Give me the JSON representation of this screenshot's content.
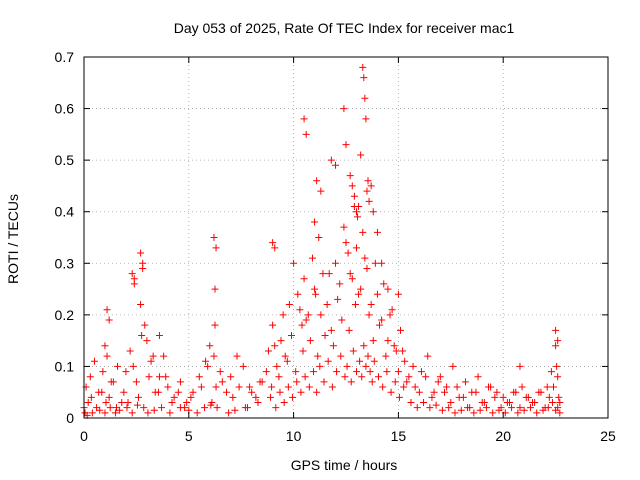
{
  "chart_data": {
    "type": "scatter",
    "title": "Day 053 of 2025, Rate Of TEC Index for receiver mac1",
    "xlabel": "GPS time / hours",
    "ylabel": "ROTI / TECUs",
    "xlim": [
      0,
      25
    ],
    "ylim": [
      0,
      0.7
    ],
    "xticks": [
      0,
      5,
      10,
      15,
      20,
      25
    ],
    "yticks": [
      0,
      0.1,
      0.2,
      0.3,
      0.4,
      0.5,
      0.6,
      0.7
    ],
    "grid": true,
    "marker": "+",
    "color": "#ff0000",
    "x": [
      0.0,
      0.1,
      0.2,
      0.3,
      0.5,
      0.7,
      0.9,
      1.0,
      1.1,
      1.2,
      1.4,
      1.6,
      1.8,
      2.0,
      2.2,
      2.4,
      2.5,
      2.7,
      2.8,
      2.9,
      3.0,
      3.2,
      3.4,
      3.6,
      3.8,
      4.0,
      4.3,
      4.6,
      4.9,
      5.2,
      5.5,
      5.8,
      6.0,
      6.2,
      6.3,
      6.5,
      6.8,
      7.0,
      7.3,
      7.6,
      7.9,
      8.2,
      8.5,
      8.8,
      9.0,
      9.2,
      9.4,
      9.6,
      9.8,
      10.0,
      10.2,
      10.4,
      10.5,
      10.7,
      10.9,
      11.0,
      11.2,
      11.4,
      11.6,
      11.8,
      12.0,
      12.2,
      12.4,
      12.6,
      12.7,
      12.9,
      13.0,
      13.1,
      13.3,
      13.5,
      13.7,
      13.9,
      14.1,
      14.3,
      14.5,
      14.7,
      14.9,
      15.1,
      15.3,
      15.5,
      15.8,
      16.1,
      16.4,
      16.7,
      17.0,
      17.3,
      17.6,
      17.9,
      18.2,
      18.5,
      18.8,
      19.1,
      19.4,
      19.7,
      20.0,
      20.3,
      20.6,
      20.9,
      21.2,
      21.5,
      21.8,
      22.1,
      22.3,
      22.5,
      22.6,
      22.7,
      0.05,
      0.35,
      0.6,
      0.85,
      1.05,
      1.3,
      1.55,
      1.9,
      2.1,
      2.35,
      2.6,
      2.75,
      3.1,
      3.3,
      3.55,
      3.9,
      4.2,
      4.5,
      4.8,
      5.1,
      5.6,
      5.9,
      6.1,
      6.25,
      6.6,
      7.1,
      7.4,
      7.7,
      8.0,
      8.4,
      8.7,
      8.95,
      9.1,
      9.3,
      9.5,
      9.7,
      9.9,
      10.1,
      10.3,
      10.45,
      10.6,
      10.8,
      11.05,
      11.15,
      11.3,
      11.5,
      11.7,
      11.9,
      12.1,
      12.3,
      12.5,
      12.65,
      12.8,
      12.95,
      13.05,
      13.2,
      13.4,
      13.6,
      13.8,
      14.0,
      14.2,
      14.4,
      14.6,
      14.8,
      15.0,
      15.2,
      15.4,
      15.7,
      16.0,
      16.3,
      16.6,
      16.9,
      17.2,
      17.5,
      17.8,
      18.1,
      18.4,
      18.7,
      19.0,
      19.3,
      19.6,
      19.9,
      20.2,
      20.5,
      20.8,
      21.1,
      21.4,
      21.7,
      22.0,
      22.2,
      22.4,
      22.55,
      22.65,
      0.15,
      0.4,
      0.75,
      1.0,
      1.25,
      1.5,
      1.7,
      2.05,
      2.3,
      2.55,
      2.85,
      3.05,
      3.35,
      3.7,
      4.1,
      4.6,
      5.0,
      5.4,
      5.75,
      6.05,
      6.35,
      6.9,
      7.2,
      7.8,
      8.3,
      8.9,
      9.15,
      9.35,
      9.55,
      9.75,
      9.95,
      10.15,
      10.35,
      10.55,
      10.75,
      10.95,
      11.1,
      11.25,
      11.45,
      11.65,
      11.85,
      12.05,
      12.25,
      12.45,
      12.55,
      12.75,
      12.85,
      13.0,
      13.15,
      13.25,
      13.35,
      13.45,
      13.55,
      13.65,
      13.75,
      13.85,
      14.05,
      14.25,
      14.45,
      14.65,
      14.85,
      15.05,
      15.25,
      15.6,
      15.9,
      16.2,
      16.5,
      16.8,
      17.1,
      17.4,
      17.7,
      18.0,
      18.3,
      18.6,
      18.9,
      19.2,
      19.5,
      19.8,
      20.1,
      20.4,
      20.7,
      21.0,
      21.3,
      21.6,
      21.9,
      22.15,
      22.35,
      22.5,
      22.6,
      22.7,
      1.1,
      1.2,
      2.3,
      2.4,
      2.7,
      2.8,
      3.6,
      6.2,
      6.3,
      6.25,
      9.0,
      9.1,
      10.5,
      10.6,
      11.0,
      11.1,
      11.3,
      11.8,
      12.0,
      12.4,
      12.5,
      12.7,
      12.8,
      12.9,
      13.0,
      13.1,
      13.2,
      13.3,
      13.35,
      13.4,
      13.45,
      13.5,
      13.55,
      13.6,
      13.7,
      13.8,
      14.0,
      14.2,
      14.5,
      15.0,
      20.8,
      22.5,
      22.6
    ],
    "y": [
      0.02,
      0.06,
      0.03,
      0.08,
      0.11,
      0.05,
      0.09,
      0.14,
      0.12,
      0.04,
      0.07,
      0.1,
      0.03,
      0.09,
      0.13,
      0.26,
      0.07,
      0.22,
      0.3,
      0.18,
      0.15,
      0.11,
      0.05,
      0.08,
      0.12,
      0.06,
      0.04,
      0.07,
      0.03,
      0.05,
      0.08,
      0.11,
      0.14,
      0.12,
      0.06,
      0.09,
      0.05,
      0.08,
      0.12,
      0.1,
      0.06,
      0.04,
      0.07,
      0.13,
      0.18,
      0.1,
      0.15,
      0.12,
      0.22,
      0.3,
      0.24,
      0.18,
      0.27,
      0.2,
      0.31,
      0.25,
      0.35,
      0.28,
      0.22,
      0.17,
      0.3,
      0.26,
      0.37,
      0.32,
      0.28,
      0.41,
      0.33,
      0.24,
      0.36,
      0.29,
      0.22,
      0.3,
      0.18,
      0.26,
      0.15,
      0.21,
      0.13,
      0.17,
      0.11,
      0.08,
      0.06,
      0.09,
      0.12,
      0.05,
      0.08,
      0.06,
      0.1,
      0.04,
      0.07,
      0.05,
      0.08,
      0.03,
      0.06,
      0.05,
      0.04,
      0.03,
      0.05,
      0.06,
      0.04,
      0.03,
      0.05,
      0.06,
      0.09,
      0.14,
      0.08,
      0.03,
      0.01,
      0.04,
      0.02,
      0.05,
      0.03,
      0.07,
      0.02,
      0.05,
      0.03,
      0.1,
      0.04,
      0.16,
      0.08,
      0.12,
      0.05,
      0.08,
      0.03,
      0.05,
      0.02,
      0.04,
      0.06,
      0.1,
      0.03,
      0.18,
      0.07,
      0.04,
      0.06,
      0.02,
      0.05,
      0.07,
      0.09,
      0.06,
      0.14,
      0.08,
      0.2,
      0.11,
      0.16,
      0.09,
      0.21,
      0.13,
      0.19,
      0.15,
      0.24,
      0.12,
      0.2,
      0.16,
      0.28,
      0.14,
      0.23,
      0.19,
      0.34,
      0.17,
      0.27,
      0.22,
      0.39,
      0.25,
      0.31,
      0.2,
      0.15,
      0.24,
      0.19,
      0.12,
      0.2,
      0.14,
      0.09,
      0.13,
      0.07,
      0.1,
      0.05,
      0.08,
      0.04,
      0.07,
      0.05,
      0.03,
      0.06,
      0.04,
      0.02,
      0.05,
      0.03,
      0.06,
      0.04,
      0.02,
      0.03,
      0.05,
      0.02,
      0.04,
      0.03,
      0.05,
      0.02,
      0.04,
      0.06,
      0.1,
      0.04,
      0.005,
      0.01,
      0.015,
      0.01,
      0.02,
      0.01,
      0.015,
      0.02,
      0.01,
      0.025,
      0.02,
      0.01,
      0.015,
      0.02,
      0.01,
      0.02,
      0.015,
      0.01,
      0.02,
      0.025,
      0.02,
      0.01,
      0.015,
      0.02,
      0.03,
      0.04,
      0.02,
      0.05,
      0.03,
      0.06,
      0.04,
      0.07,
      0.05,
      0.08,
      0.06,
      0.09,
      0.05,
      0.1,
      0.07,
      0.11,
      0.06,
      0.09,
      0.12,
      0.08,
      0.1,
      0.07,
      0.13,
      0.09,
      0.11,
      0.08,
      0.14,
      0.1,
      0.12,
      0.09,
      0.07,
      0.11,
      0.08,
      0.06,
      0.09,
      0.05,
      0.07,
      0.04,
      0.06,
      0.03,
      0.02,
      0.03,
      0.02,
      0.025,
      0.015,
      0.02,
      0.01,
      0.015,
      0.02,
      0.01,
      0.015,
      0.02,
      0.01,
      0.015,
      0.01,
      0.02,
      0.01,
      0.015,
      0.02,
      0.01,
      0.015,
      0.02,
      0.03,
      0.015,
      0.02,
      0.01,
      0.21,
      0.19,
      0.28,
      0.27,
      0.32,
      0.29,
      0.16,
      0.35,
      0.33,
      0.25,
      0.34,
      0.33,
      0.58,
      0.55,
      0.38,
      0.46,
      0.44,
      0.5,
      0.49,
      0.6,
      0.53,
      0.47,
      0.45,
      0.43,
      0.4,
      0.41,
      0.51,
      0.68,
      0.66,
      0.62,
      0.58,
      0.44,
      0.46,
      0.42,
      0.45,
      0.4,
      0.36,
      0.3,
      0.25,
      0.24,
      0.1,
      0.17,
      0.15
    ]
  }
}
